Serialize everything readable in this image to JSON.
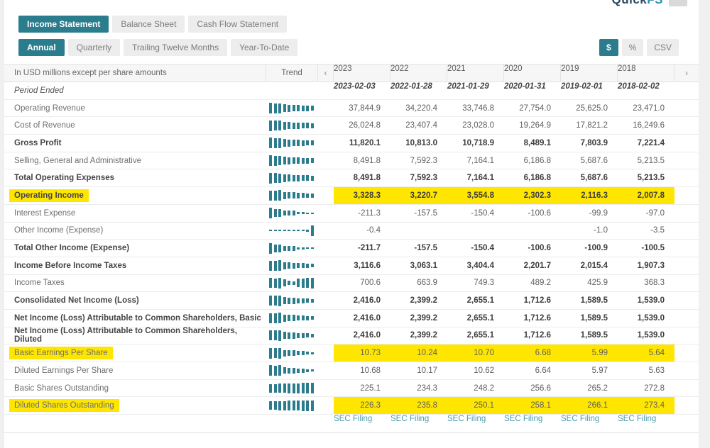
{
  "logo": {
    "text_main": "Quick",
    "text_accent": "FS"
  },
  "tabs": {
    "statements": [
      {
        "label": "Income Statement",
        "active": true
      },
      {
        "label": "Balance Sheet",
        "active": false
      },
      {
        "label": "Cash Flow Statement",
        "active": false
      }
    ],
    "periods": [
      {
        "label": "Annual",
        "active": true
      },
      {
        "label": "Quarterly",
        "active": false
      },
      {
        "label": "Trailing Twelve Months",
        "active": false
      },
      {
        "label": "Year-To-Date",
        "active": false
      }
    ]
  },
  "toolbar": [
    {
      "label": "$",
      "active": true
    },
    {
      "label": "%",
      "active": false
    },
    {
      "label": "CSV",
      "active": false
    }
  ],
  "table": {
    "note": "In USD millions except per share amounts",
    "trend_label": "Trend",
    "prev_icon": "‹",
    "next_icon": "›",
    "years": [
      "2023",
      "2022",
      "2021",
      "2020",
      "2019",
      "2018"
    ],
    "period_row": {
      "label": "Period Ended",
      "dates": [
        "2023-02-03",
        "2022-01-28",
        "2021-01-29",
        "2020-01-31",
        "2019-02-01",
        "2018-02-02"
      ]
    },
    "rows": [
      {
        "label": "Operating Revenue",
        "bold": false,
        "highlight": false,
        "values": [
          "37,844.9",
          "34,220.4",
          "33,746.8",
          "27,754.0",
          "25,625.0",
          "23,471.0"
        ],
        "trend": [
          100,
          92,
          90,
          74,
          68,
          63,
          58,
          54,
          50,
          46
        ]
      },
      {
        "label": "Cost of Revenue",
        "bold": false,
        "highlight": false,
        "values": [
          "26,024.8",
          "23,407.4",
          "23,028.0",
          "19,264.9",
          "17,821.2",
          "16,249.6"
        ],
        "trend": [
          100,
          92,
          90,
          74,
          68,
          63,
          58,
          54,
          50,
          46
        ]
      },
      {
        "label": "Gross Profit",
        "bold": true,
        "highlight": false,
        "values": [
          "11,820.1",
          "10,813.0",
          "10,718.9",
          "8,489.1",
          "7,803.9",
          "7,221.4"
        ],
        "trend": [
          100,
          93,
          91,
          72,
          66,
          62,
          57,
          52,
          48,
          44
        ]
      },
      {
        "label": "Selling, General and Administrative",
        "bold": false,
        "highlight": false,
        "values": [
          "8,491.8",
          "7,592.3",
          "7,164.1",
          "6,186.8",
          "5,687.6",
          "5,213.5"
        ],
        "trend": [
          100,
          90,
          85,
          74,
          68,
          63,
          58,
          54,
          50,
          46
        ]
      },
      {
        "label": "Total Operating Expenses",
        "bold": true,
        "highlight": false,
        "values": [
          "8,491.8",
          "7,592.3",
          "7,164.1",
          "6,186.8",
          "5,687.6",
          "5,213.5"
        ],
        "trend": [
          100,
          90,
          85,
          74,
          68,
          63,
          58,
          54,
          50,
          46
        ]
      },
      {
        "label": "Operating Income",
        "bold": true,
        "highlight": true,
        "values": [
          "3,328.3",
          "3,220.7",
          "3,554.8",
          "2,302.3",
          "2,116.3",
          "2,007.8"
        ],
        "trend": [
          94,
          91,
          100,
          65,
          60,
          57,
          50,
          45,
          41,
          38
        ]
      },
      {
        "label": "Interest Expense",
        "bold": false,
        "highlight": false,
        "values": [
          "-211.3",
          "-157.5",
          "-150.4",
          "-100.6",
          "-99.9",
          "-97.0"
        ],
        "trend": [
          100,
          75,
          71,
          48,
          47,
          46,
          22,
          17,
          14,
          12
        ]
      },
      {
        "label": "Other Income (Expense)",
        "bold": false,
        "highlight": false,
        "values": [
          "-0.4",
          "",
          "",
          "",
          "-1.0",
          "-3.5"
        ],
        "trend": [
          7,
          5,
          5,
          5,
          9,
          5,
          13,
          8,
          22,
          100
        ]
      },
      {
        "label": "Total Other Income (Expense)",
        "bold": true,
        "highlight": false,
        "values": [
          "-211.7",
          "-157.5",
          "-150.4",
          "-100.6",
          "-100.9",
          "-100.5"
        ],
        "trend": [
          100,
          75,
          71,
          48,
          47,
          46,
          22,
          17,
          14,
          12
        ]
      },
      {
        "label": "Income Before Income Taxes",
        "bold": true,
        "highlight": false,
        "values": [
          "3,116.6",
          "3,063.1",
          "3,404.4",
          "2,201.7",
          "2,015.4",
          "1,907.3"
        ],
        "trend": [
          92,
          90,
          100,
          65,
          59,
          56,
          49,
          44,
          40,
          36
        ]
      },
      {
        "label": "Income Taxes",
        "bold": false,
        "highlight": false,
        "values": [
          "700.6",
          "663.9",
          "749.3",
          "489.2",
          "425.9",
          "368.3"
        ],
        "trend": [
          93,
          89,
          100,
          65,
          42,
          35,
          80,
          85,
          90,
          97
        ]
      },
      {
        "label": "Consolidated Net Income (Loss)",
        "bold": true,
        "highlight": false,
        "values": [
          "2,416.0",
          "2,399.2",
          "2,655.1",
          "1,712.6",
          "1,589.5",
          "1,539.0"
        ],
        "trend": [
          91,
          90,
          100,
          64,
          60,
          58,
          49,
          44,
          40,
          36
        ]
      },
      {
        "label": "Net Income (Loss) Attributable to Common Shareholders, Basic",
        "bold": true,
        "highlight": false,
        "values": [
          "2,416.0",
          "2,399.2",
          "2,655.1",
          "1,712.6",
          "1,589.5",
          "1,539.0"
        ],
        "trend": [
          91,
          90,
          100,
          64,
          60,
          58,
          49,
          44,
          40,
          36
        ]
      },
      {
        "label": "Net Income (Loss) Attributable to Common Shareholders, Diluted",
        "bold": true,
        "highlight": false,
        "values": [
          "2,416.0",
          "2,399.2",
          "2,655.1",
          "1,712.6",
          "1,589.5",
          "1,539.0"
        ],
        "trend": [
          91,
          90,
          100,
          64,
          60,
          58,
          49,
          44,
          40,
          36
        ]
      },
      {
        "label": "Basic Earnings Per Share",
        "bold": false,
        "highlight": true,
        "values": [
          "10.73",
          "10.24",
          "10.70",
          "6.68",
          "5.99",
          "5.64"
        ],
        "trend": [
          100,
          96,
          100,
          62,
          56,
          53,
          42,
          37,
          28,
          22
        ]
      },
      {
        "label": "Diluted Earnings Per Share",
        "bold": false,
        "highlight": false,
        "values": [
          "10.68",
          "10.17",
          "10.62",
          "6.64",
          "5.97",
          "5.63"
        ],
        "trend": [
          100,
          96,
          100,
          62,
          56,
          53,
          42,
          37,
          28,
          22
        ]
      },
      {
        "label": "Basic Shares Outstanding",
        "bold": false,
        "highlight": false,
        "values": [
          "225.1",
          "234.3",
          "248.2",
          "256.6",
          "265.2",
          "272.8"
        ],
        "trend": [
          80,
          83,
          86,
          89,
          92,
          94,
          96,
          98,
          99,
          100
        ]
      },
      {
        "label": "Diluted Shares Outstanding",
        "bold": false,
        "highlight": true,
        "values": [
          "226.3",
          "235.8",
          "250.1",
          "258.1",
          "266.1",
          "273.4"
        ],
        "trend": [
          80,
          83,
          86,
          89,
          92,
          94,
          96,
          98,
          99,
          100
        ]
      }
    ],
    "sec_links": [
      "SEC Filing",
      "SEC Filing",
      "SEC Filing",
      "SEC Filing",
      "SEC Filing",
      "SEC Filing"
    ]
  },
  "colors": {
    "accent_teal": "#2b7c8d",
    "highlight_yellow": "#ffe600",
    "link_teal": "#4c9cae",
    "spark_teal": "#2b7c8d"
  }
}
